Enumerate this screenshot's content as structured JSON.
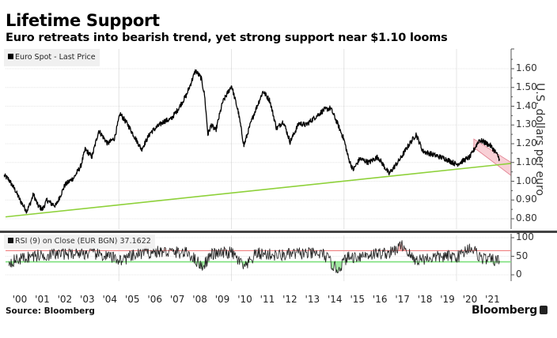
{
  "header": {
    "title": "Lifetime Support",
    "subtitle": "Euro retreats into bearish trend, yet strong support near $1.10 looms"
  },
  "footer": {
    "source": "Source: Bloomberg",
    "brand": "Bloomberg"
  },
  "colors": {
    "price": "#000000",
    "support_line": "#8ed13a",
    "channel": "#f2a9b4",
    "rsi_upper": "#f08080",
    "rsi_lower": "#7de07d",
    "axis": "#555555",
    "grid": "#e4e4e4"
  },
  "chart_data": [
    {
      "type": "line",
      "name": "price-panel",
      "legend": "Euro Spot - Last Price",
      "ylabel": "U.S. dollars per euro",
      "ylim": [
        0.75,
        1.65
      ],
      "yticks": [
        "1.60",
        "1.50",
        "1.40",
        "1.30",
        "1.20",
        "1.10",
        "1.00",
        "0.90",
        "0.80"
      ],
      "ytick_values": [
        1.6,
        1.5,
        1.4,
        1.3,
        1.2,
        1.1,
        1.0,
        0.9,
        0.8
      ],
      "xlim": [
        1999.8,
        2022.6
      ],
      "xticks": [
        "'00",
        "'01",
        "'02",
        "'03",
        "'04",
        "'05",
        "'06",
        "'07",
        "'08",
        "'09",
        "'10",
        "'11",
        "'12",
        "'13",
        "'14",
        "'15",
        "'16",
        "'17",
        "'18",
        "'19",
        "'20",
        "'21"
      ],
      "xtick_years": [
        2000,
        2001,
        2002,
        2003,
        2004,
        2005,
        2006,
        2007,
        2008,
        2009,
        2010,
        2011,
        2012,
        2013,
        2014,
        2015,
        2016,
        2017,
        2018,
        2019,
        2020,
        2021
      ],
      "series": [
        {
          "name": "Euro Spot - Last Price",
          "x": [
            1999.8,
            2000.0,
            2000.3,
            2000.5,
            2000.8,
            2000.95,
            2001.1,
            2001.3,
            2001.5,
            2001.7,
            2001.9,
            2002.1,
            2002.5,
            2002.9,
            2003.2,
            2003.4,
            2003.7,
            2004.0,
            2004.4,
            2004.7,
            2004.95,
            2005.3,
            2005.9,
            2006.3,
            2006.9,
            2007.2,
            2007.5,
            2007.9,
            2008.3,
            2008.55,
            2008.7,
            2008.85,
            2009.0,
            2009.2,
            2009.5,
            2009.9,
            2010.2,
            2010.45,
            2010.7,
            2010.9,
            2011.3,
            2011.6,
            2011.9,
            2012.2,
            2012.5,
            2012.9,
            2013.2,
            2013.5,
            2014.0,
            2014.3,
            2014.6,
            2014.9,
            2015.1,
            2015.3,
            2015.6,
            2016.0,
            2016.4,
            2016.9,
            2017.4,
            2017.7,
            2018.1,
            2018.4,
            2018.9,
            2019.4,
            2019.9,
            2020.2,
            2020.5,
            2020.9,
            2021.1,
            2021.4,
            2021.6,
            2021.8
          ],
          "y": [
            1.03,
            1.01,
            0.95,
            0.9,
            0.84,
            0.88,
            0.93,
            0.87,
            0.85,
            0.9,
            0.88,
            0.87,
            0.98,
            1.02,
            1.08,
            1.17,
            1.13,
            1.27,
            1.2,
            1.23,
            1.36,
            1.3,
            1.17,
            1.26,
            1.32,
            1.33,
            1.38,
            1.46,
            1.59,
            1.55,
            1.46,
            1.25,
            1.3,
            1.27,
            1.42,
            1.51,
            1.37,
            1.19,
            1.29,
            1.36,
            1.48,
            1.43,
            1.28,
            1.32,
            1.21,
            1.31,
            1.3,
            1.33,
            1.38,
            1.39,
            1.31,
            1.22,
            1.12,
            1.06,
            1.12,
            1.1,
            1.13,
            1.04,
            1.12,
            1.18,
            1.25,
            1.16,
            1.14,
            1.12,
            1.09,
            1.11,
            1.13,
            1.22,
            1.21,
            1.19,
            1.16,
            1.12
          ]
        },
        {
          "name": "Support trend line",
          "x": [
            1999.8,
            2022.6
          ],
          "y": [
            0.81,
            1.095
          ]
        }
      ],
      "channel": {
        "upper": {
          "x": [
            2020.7,
            2022.6
          ],
          "y": [
            1.225,
            1.1
          ]
        },
        "lower": {
          "x": [
            2020.7,
            2022.6
          ],
          "y": [
            1.18,
            1.03
          ]
        }
      }
    },
    {
      "type": "line",
      "name": "rsi-panel",
      "legend": "RSI (9)  on Close (EUR BGN) 37.1622",
      "ylim": [
        0,
        100
      ],
      "yticks": [
        "100",
        "50",
        "0"
      ],
      "ytick_values": [
        100,
        50,
        0
      ],
      "upper_band": 65,
      "lower_band": 35,
      "last_value": 37.1622,
      "series": [
        {
          "name": "RSI (9)",
          "seed": 7,
          "x_range": [
            1999.8,
            2021.8
          ],
          "key_points": {
            "x": [
              2000,
              2001,
              2002,
              2003,
              2004,
              2005,
              2006,
              2007,
              2008,
              2008.6,
              2009,
              2009.9,
              2010.5,
              2011,
              2012,
              2013,
              2014,
              2014.6,
              2015,
              2016,
              2017,
              2017.5,
              2018,
              2019,
              2020,
              2020.5,
              2021,
              2021.8
            ],
            "y": [
              35,
              50,
              55,
              60,
              55,
              40,
              60,
              62,
              58,
              22,
              55,
              60,
              18,
              58,
              52,
              58,
              55,
              12,
              45,
              55,
              60,
              80,
              40,
              48,
              50,
              76,
              45,
              37.16
            ]
          }
        }
      ]
    }
  ]
}
